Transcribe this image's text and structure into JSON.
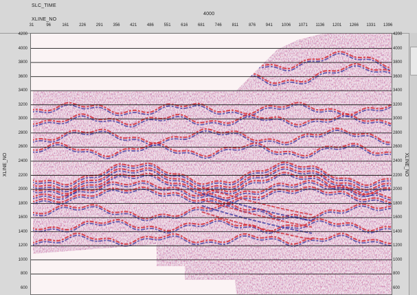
{
  "header": {
    "field_label": "SLC_TIME",
    "field_value": "4000",
    "axis_label": "XLINE_NO"
  },
  "x_axis": {
    "ticks": [
      "31",
      "96",
      "161",
      "226",
      "291",
      "356",
      "421",
      "486",
      "551",
      "616",
      "681",
      "746",
      "811",
      "876",
      "941",
      "1006",
      "1071",
      "1136",
      "1201",
      "1266",
      "1331",
      "1396"
    ]
  },
  "y_axis": {
    "title": "XLINE_NO",
    "ticks": [
      "4200",
      "4000",
      "3800",
      "3600",
      "3400",
      "3200",
      "3000",
      "2800",
      "2600",
      "2400",
      "2200",
      "2000",
      "1800",
      "1600",
      "1400",
      "1200",
      "1000",
      "800",
      "600"
    ]
  },
  "colors": {
    "positive_amplitude": "#d0202a",
    "negative_amplitude": "#2a2a9a",
    "background": "#fbf3f4",
    "gridline": "#1a1a1a"
  }
}
